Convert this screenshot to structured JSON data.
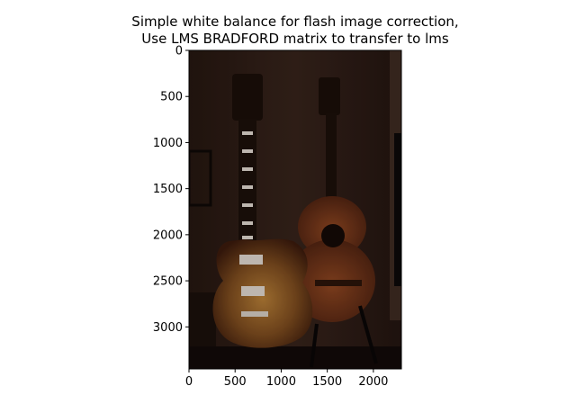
{
  "chart_data": {
    "type": "image",
    "title": [
      "Simple white balance for flash image correction,",
      "Use LMS BRADFORD matrix to transfer to lms"
    ],
    "xlabel": "",
    "ylabel": "",
    "xlim": [
      0,
      2304
    ],
    "ylim": [
      3456,
      0
    ],
    "x_ticks": [
      0,
      500,
      1000,
      1500,
      2000
    ],
    "y_ticks": [
      0,
      500,
      1000,
      1500,
      2000,
      2500,
      3000
    ],
    "grid": false,
    "image_description": "Dark, flash-lit photo of an electric guitar (sunburst) and an acoustic classical guitar leaning against a wall",
    "palette": {
      "wall": "#2a1a14",
      "wall_light": "#3a251b",
      "floor": "#120a08",
      "electric_body_center": "#b07a35",
      "electric_body_edge": "#3a1a0c",
      "acoustic_body": "#7a3a1c",
      "acoustic_body_dark": "#4a2010",
      "neck": "#1b0f0a",
      "chrome": "#d8d0c8"
    }
  }
}
